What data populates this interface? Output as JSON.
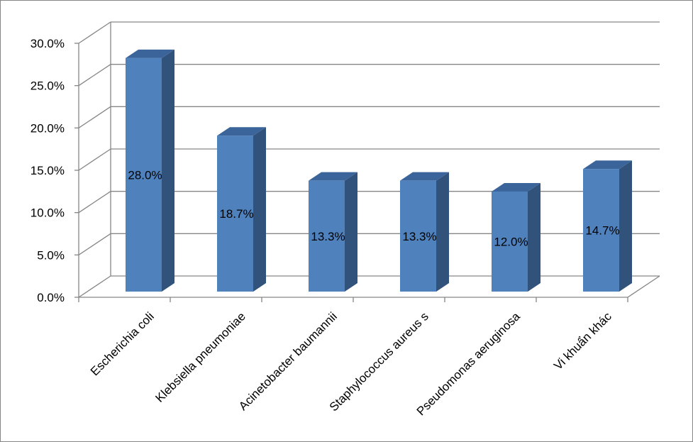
{
  "chart_data": {
    "type": "bar",
    "style": "3d-column",
    "categories": [
      "Escherichia coli",
      "Klebsiella pneumoniae",
      "Acinetobacter baumannii",
      "Staphylococcus aureus s",
      "Pseudomonas aeruginosa",
      "Vi khuẩn khác"
    ],
    "values": [
      28.0,
      18.7,
      13.3,
      13.3,
      12.0,
      14.7
    ],
    "data_labels": [
      "28.0%",
      "18.7%",
      "13.3%",
      "13.3%",
      "12.0%",
      "14.7%"
    ],
    "y_ticks": [
      0,
      5,
      10,
      15,
      20,
      25,
      30
    ],
    "y_tick_labels": [
      "0.0%",
      "5.0%",
      "10.0%",
      "15.0%",
      "20.0%",
      "25.0%",
      "30.0%"
    ],
    "ylim": [
      0,
      30
    ],
    "grid": true,
    "legend": "none",
    "colors": {
      "bar_front": "#4F81BD",
      "bar_side": "#31527A",
      "bar_top": "#3B659A",
      "gridline": "#868686"
    }
  }
}
